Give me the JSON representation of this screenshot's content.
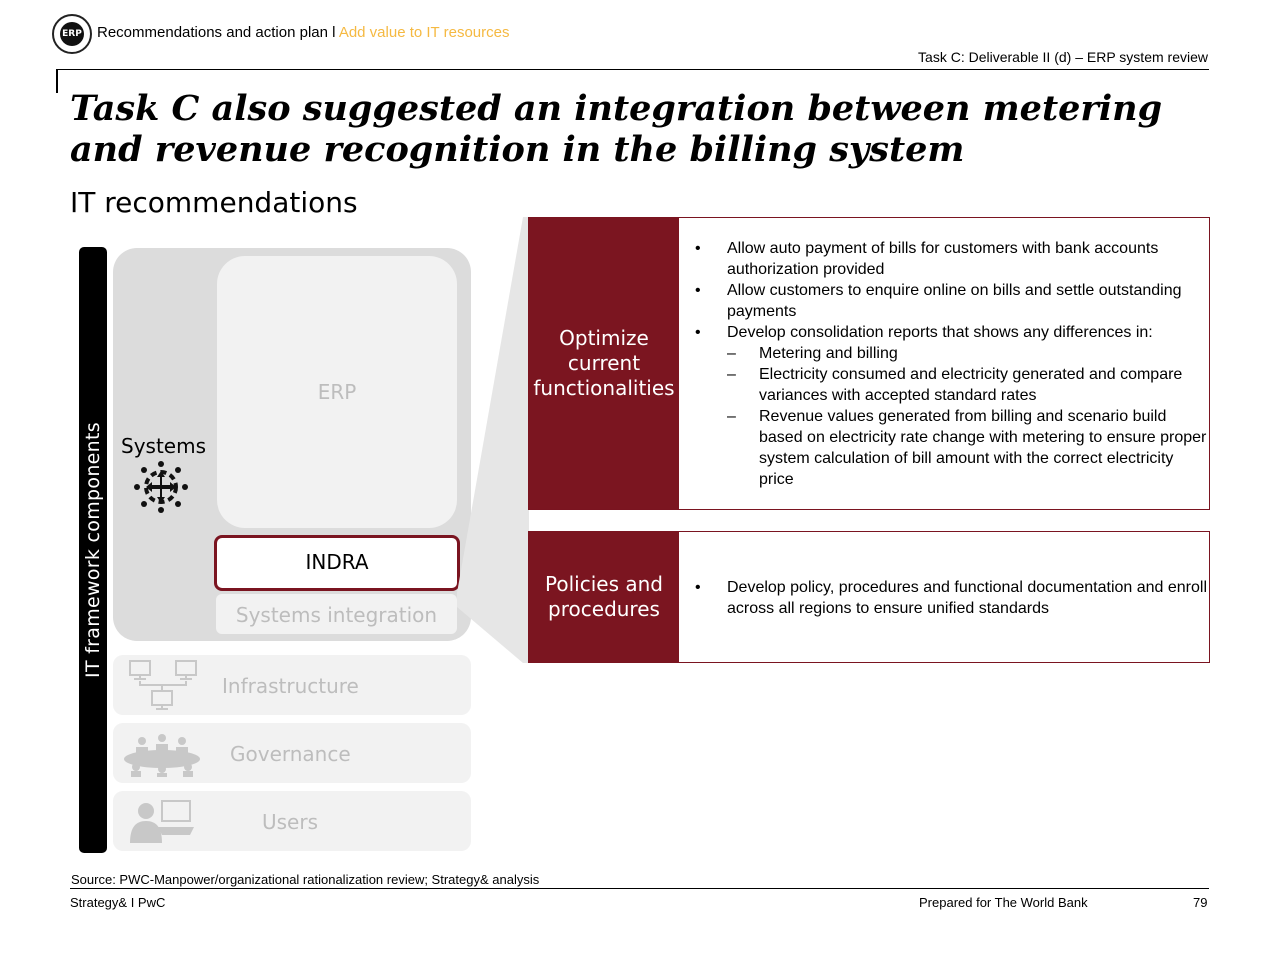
{
  "header": {
    "logo_text": "ERP",
    "section": "Recommendations and action plan l ",
    "section_accent": "Add value to IT resources",
    "task_label": "Task C: Deliverable II (d) – ERP system review"
  },
  "title": "Task C also suggested an integration between metering and revenue recognition in the billing system",
  "subtitle": "IT recommendations",
  "framework": {
    "bar_label": "IT framework components",
    "systems_label": "Systems",
    "erp_label": "ERP",
    "indra_label": "INDRA",
    "systems_integration_label": "Systems integration",
    "layers": [
      "Infrastructure",
      "Governance",
      "Users"
    ]
  },
  "panels": [
    {
      "heading": "Optimize current functionalities",
      "bullets": [
        "Allow auto payment of bills for customers with bank accounts authorization provided",
        "Allow customers to enquire online on bills and settle outstanding payments",
        "Develop consolidation reports that shows any differences in:"
      ],
      "sub_bullets": [
        "Metering and billing",
        "Electricity consumed and electricity generated and compare variances with accepted standard rates",
        "Revenue values generated from billing and scenario build based on electricity rate change with metering to ensure proper system calculation of bill amount with the correct electricity price"
      ]
    },
    {
      "heading": "Policies and procedures",
      "bullets": [
        "Develop policy, procedures and functional documentation and enroll across all regions to ensure unified standards"
      ]
    }
  ],
  "footer": {
    "source": "Source: PWC-Manpower/organizational rationalization review; Strategy& analysis",
    "left": "Strategy& I PwC",
    "middle": "Prepared for The World Bank",
    "page": "79"
  },
  "colors": {
    "accent": "#f5b942",
    "panel_red": "#7b1520",
    "light_gray": "#f2f2f2",
    "mid_gray": "#dcdcdc",
    "muted_text": "#bdbdbd"
  }
}
